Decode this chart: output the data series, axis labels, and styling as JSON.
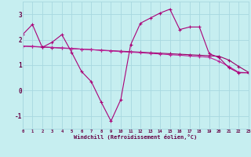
{
  "background_color": "#c6eef0",
  "grid_color": "#a8d8e0",
  "line_color1": "#aa0077",
  "line_color2": "#990066",
  "line_color3": "#bb2299",
  "x_min": 0,
  "x_max": 23,
  "y_min": -1.5,
  "y_max": 3.5,
  "xlabel": "Windchill (Refroidissement éolien,°C)",
  "series1_x": [
    0,
    1,
    2,
    3,
    4,
    5,
    6,
    7,
    8,
    9,
    10,
    11,
    12,
    13,
    14,
    15,
    16,
    17,
    18,
    19,
    20,
    21,
    22,
    23
  ],
  "series1_y": [
    2.2,
    2.6,
    1.7,
    1.9,
    2.2,
    1.5,
    0.75,
    0.35,
    -0.45,
    -1.2,
    -0.35,
    1.8,
    2.65,
    2.85,
    3.05,
    3.2,
    2.4,
    2.5,
    2.5,
    1.45,
    1.3,
    0.9,
    0.7,
    0.7
  ],
  "series2_x": [
    0,
    1,
    2,
    3,
    4,
    5,
    6,
    7,
    8,
    9,
    10,
    11,
    12,
    13,
    14,
    15,
    16,
    17,
    18,
    19,
    20,
    21,
    22,
    23
  ],
  "series2_y": [
    1.75,
    1.73,
    1.71,
    1.69,
    1.67,
    1.65,
    1.63,
    1.61,
    1.59,
    1.57,
    1.55,
    1.53,
    1.51,
    1.49,
    1.47,
    1.45,
    1.43,
    1.41,
    1.39,
    1.37,
    1.35,
    1.2,
    0.95,
    0.72
  ],
  "series3_x": [
    0,
    1,
    2,
    3,
    4,
    5,
    6,
    7,
    8,
    9,
    10,
    11,
    12,
    13,
    14,
    15,
    16,
    17,
    18,
    19,
    20,
    21,
    22,
    23
  ],
  "series3_y": [
    1.75,
    1.74,
    1.72,
    1.7,
    1.68,
    1.66,
    1.63,
    1.61,
    1.58,
    1.56,
    1.53,
    1.51,
    1.49,
    1.46,
    1.44,
    1.41,
    1.39,
    1.36,
    1.34,
    1.31,
    1.15,
    0.95,
    0.72,
    0.7
  ],
  "ytick_labels": [
    "-1",
    "0",
    "1",
    "2",
    "3"
  ],
  "ytick_values": [
    -1,
    0,
    1,
    2,
    3
  ],
  "xtick_values": [
    0,
    1,
    2,
    3,
    4,
    5,
    6,
    7,
    8,
    9,
    10,
    11,
    12,
    13,
    14,
    15,
    16,
    17,
    18,
    19,
    20,
    21,
    22,
    23
  ],
  "xtick_labels": [
    "0",
    "1",
    "2",
    "3",
    "4",
    "5",
    "6",
    "7",
    "8",
    "9",
    "10",
    "11",
    "12",
    "13",
    "14",
    "15",
    "16",
    "17",
    "18",
    "19",
    "20",
    "21",
    "22",
    "23"
  ]
}
